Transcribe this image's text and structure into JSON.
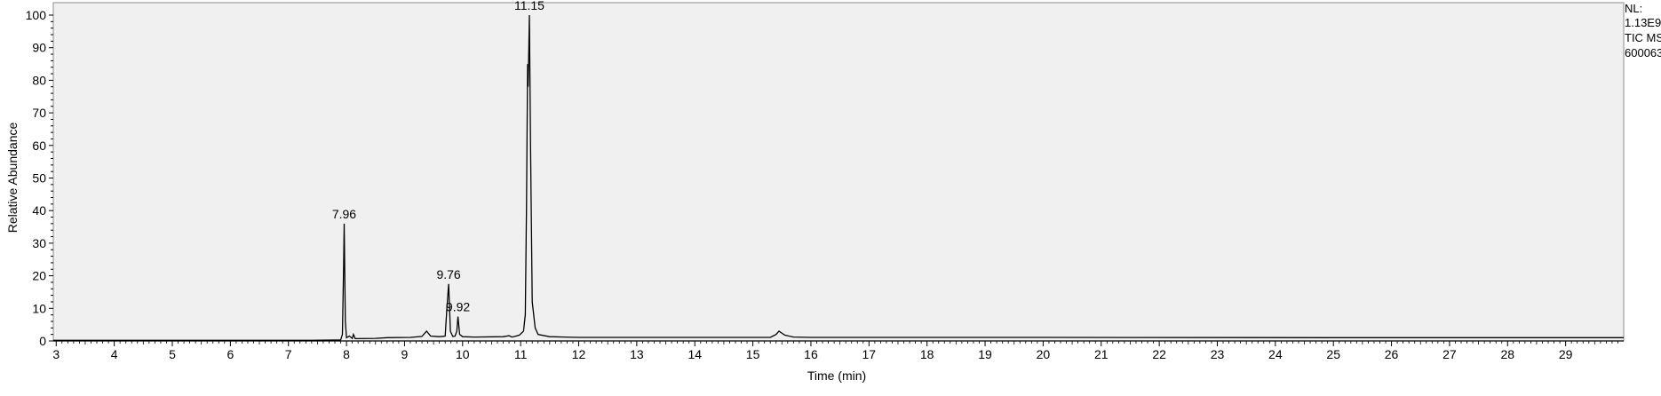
{
  "chart_data": {
    "type": "line",
    "xlabel": "Time (min)",
    "ylabel": "Relative Abundance",
    "xlim": [
      2.95,
      30.0
    ],
    "ylim": [
      0,
      100
    ],
    "x_ticks": [
      3,
      4,
      5,
      6,
      7,
      8,
      9,
      10,
      11,
      12,
      13,
      14,
      15,
      16,
      17,
      18,
      19,
      20,
      21,
      22,
      23,
      24,
      25,
      26,
      27,
      28,
      29
    ],
    "y_ticks": [
      0,
      10,
      20,
      30,
      40,
      50,
      60,
      70,
      80,
      90,
      100
    ],
    "grid": false,
    "info": [
      "NL:",
      "1.13E9",
      "TIC  MS",
      "600063"
    ],
    "peak_labels": [
      {
        "x": 7.96,
        "y": 36,
        "text": "7.96"
      },
      {
        "x": 9.76,
        "y": 17.5,
        "text": "9.76"
      },
      {
        "x": 9.92,
        "y": 7.5,
        "text": "9.92"
      },
      {
        "x": 11.15,
        "y": 100,
        "text": "11.15"
      }
    ],
    "series": [
      {
        "x": [
          2.95,
          7.4,
          7.9,
          7.93,
          7.95,
          7.96,
          7.98,
          8.0,
          8.05,
          8.1,
          8.12,
          8.15,
          8.5,
          8.7,
          9.1,
          9.3,
          9.38,
          9.45,
          9.6,
          9.7,
          9.73,
          9.76,
          9.79,
          9.83,
          9.87,
          9.9,
          9.92,
          9.95,
          10.0,
          10.2,
          10.7,
          10.8,
          10.85,
          10.9,
          10.98,
          11.05,
          11.08,
          11.1,
          11.12,
          11.13,
          11.15,
          11.17,
          11.2,
          11.25,
          11.3,
          11.5,
          12.0,
          15.3,
          15.4,
          15.45,
          15.55,
          15.7,
          16.0,
          20.0,
          25.0,
          30.0
        ],
        "y": [
          0.2,
          0.2,
          0.3,
          2,
          22,
          36,
          6,
          1,
          1.5,
          0.8,
          2,
          0.7,
          0.8,
          1.0,
          1.1,
          1.4,
          3,
          1.5,
          1.3,
          1.5,
          10,
          17.5,
          3,
          1.4,
          1.5,
          3,
          7.5,
          2,
          1.3,
          1.2,
          1.3,
          1.6,
          1.2,
          1.4,
          1.8,
          3,
          8,
          40,
          85,
          78,
          100,
          60,
          12,
          4,
          2,
          1.3,
          1.1,
          1.1,
          2,
          3,
          1.8,
          1.2,
          1.1,
          1.1,
          1.0,
          1.0
        ]
      }
    ]
  }
}
